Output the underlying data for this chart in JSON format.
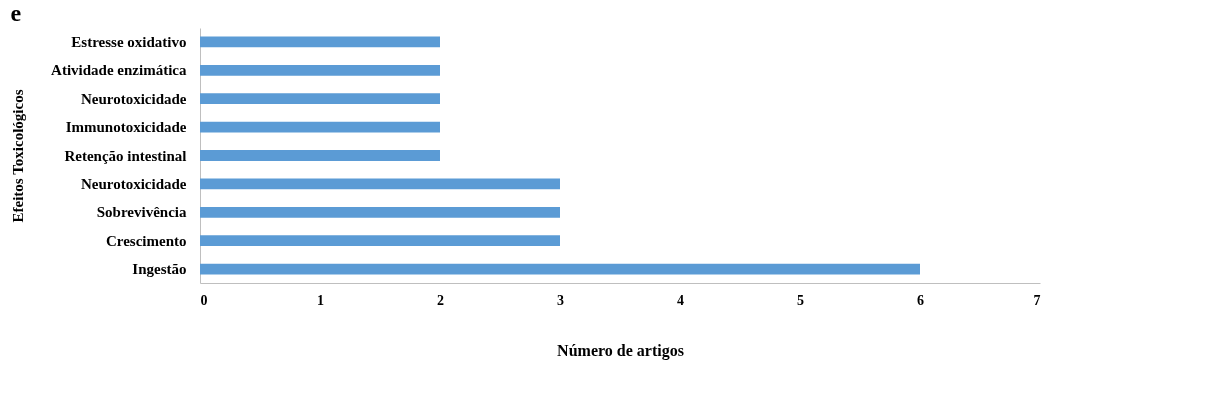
{
  "chart_data": {
    "type": "bar",
    "orientation": "horizontal",
    "categories": [
      "Estresse oxidativo",
      "Atividade enzimática",
      "Neurotoxicidade",
      "Immunotoxicidade",
      "Retenção intestinal",
      "Neurotoxicidade",
      "Sobrevivência",
      "Crescimento",
      "Ingestão"
    ],
    "values": [
      2,
      2,
      2,
      2,
      2,
      3,
      3,
      3,
      6
    ],
    "color": "#5b9bd5",
    "xlim": [
      0,
      7
    ],
    "xticks": [
      0,
      1,
      2,
      3,
      4,
      5,
      6,
      7
    ],
    "xlabel": "Número de artigos",
    "ylabel": "Efeitos Toxicológicos",
    "annotations": [
      "e"
    ]
  }
}
